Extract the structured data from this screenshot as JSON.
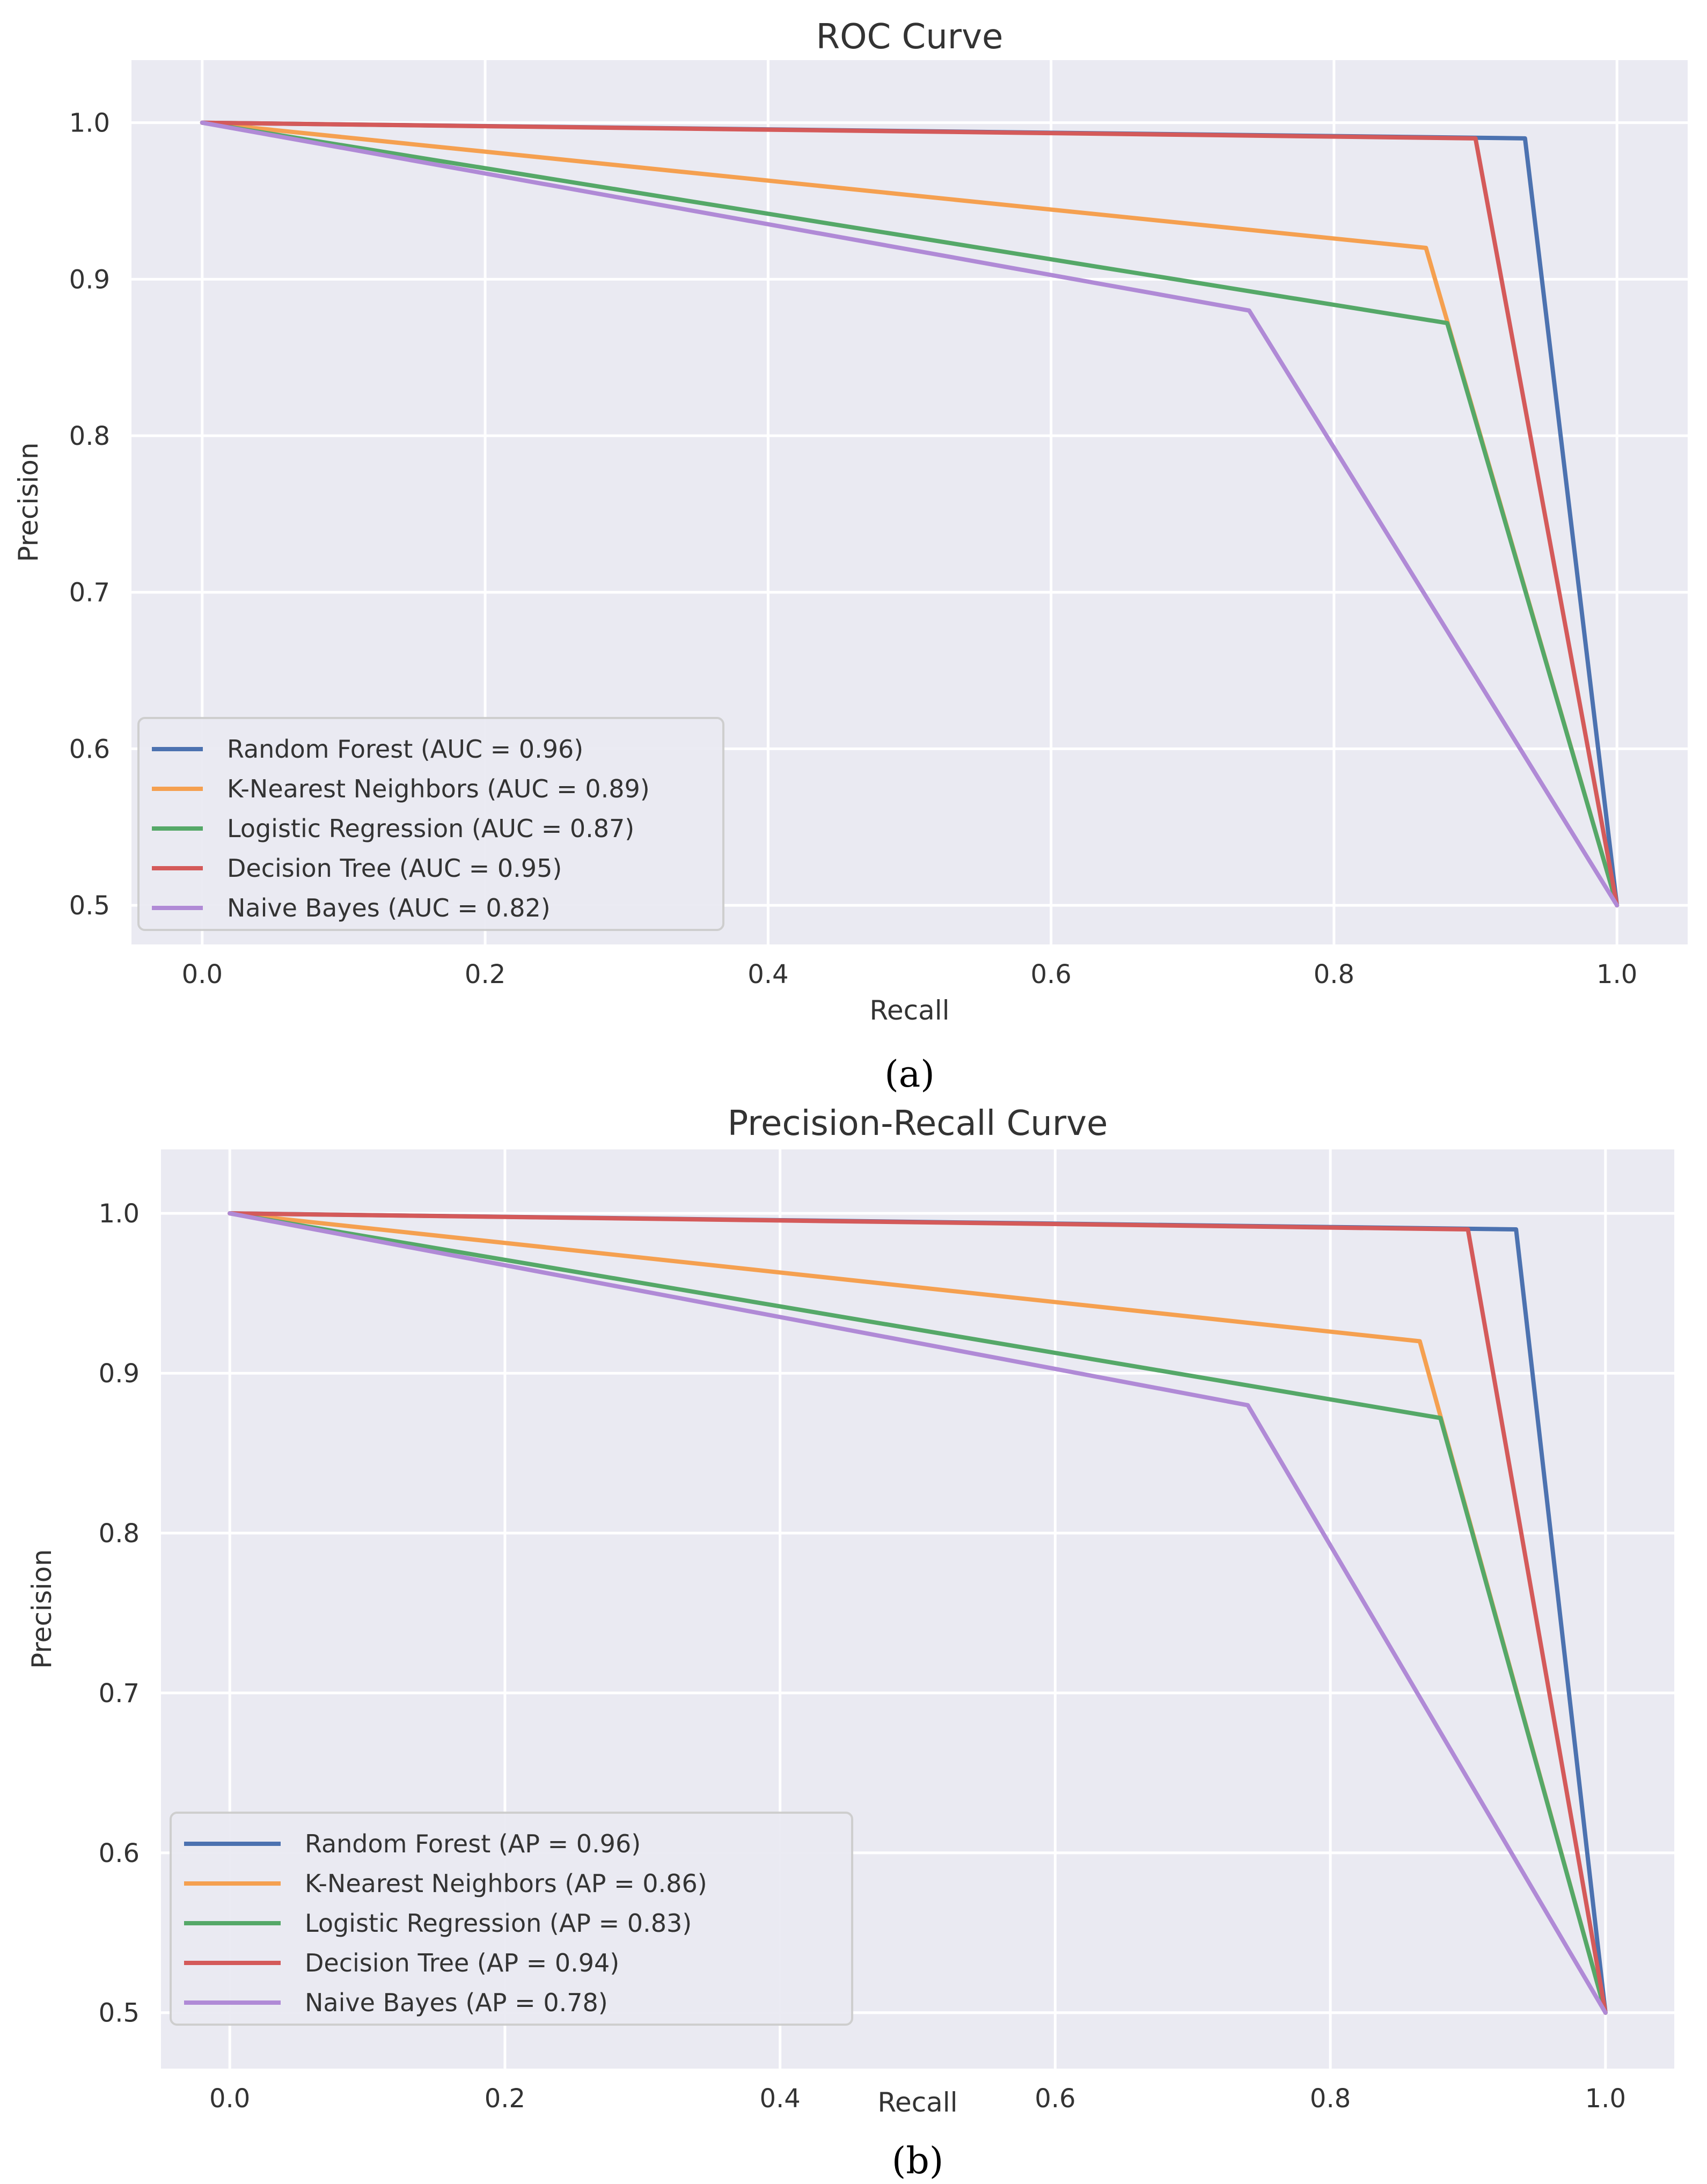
{
  "chart_data": [
    {
      "type": "line",
      "panel_label": "(a)",
      "title": "ROC Curve",
      "xlabel": "Recall",
      "ylabel": "Precision",
      "xlim": [
        -0.05,
        1.05
      ],
      "ylim": [
        0.475,
        1.04
      ],
      "xticks": [
        "0.0",
        "0.2",
        "0.4",
        "0.6",
        "0.8",
        "1.0"
      ],
      "xtick_values": [
        0.0,
        0.2,
        0.4,
        0.6,
        0.8,
        1.0
      ],
      "yticks": [
        "0.5",
        "0.6",
        "0.7",
        "0.8",
        "0.9",
        "1.0"
      ],
      "ytick_values": [
        0.5,
        0.6,
        0.7,
        0.8,
        0.9,
        1.0
      ],
      "grid": true,
      "legend_position": "lower-left",
      "series": [
        {
          "name": "Random Forest (AUC = 0.96)",
          "color": "#4c72b0",
          "x": [
            0.0,
            0.935,
            1.0
          ],
          "y": [
            1.0,
            0.99,
            0.5
          ]
        },
        {
          "name": "K-Nearest Neighbors (AUC = 0.89)",
          "color": "#f5a050",
          "x": [
            0.0,
            0.865,
            1.0
          ],
          "y": [
            1.0,
            0.92,
            0.5
          ]
        },
        {
          "name": "Logistic Regression (AUC = 0.87)",
          "color": "#55a868",
          "x": [
            0.0,
            0.88,
            1.0
          ],
          "y": [
            1.0,
            0.872,
            0.5
          ]
        },
        {
          "name": "Decision Tree (AUC = 0.95)",
          "color": "#d45a5a",
          "x": [
            0.0,
            0.9,
            1.0
          ],
          "y": [
            1.0,
            0.99,
            0.5
          ]
        },
        {
          "name": "Naive Bayes (AUC = 0.82)",
          "color": "#b08ad6",
          "x": [
            0.0,
            0.74,
            1.0
          ],
          "y": [
            1.0,
            0.88,
            0.5
          ]
        }
      ]
    },
    {
      "type": "line",
      "panel_label": "(b)",
      "title": "Precision-Recall Curve",
      "xlabel": "Recall",
      "ylabel": "Precision",
      "xlim": [
        -0.05,
        1.05
      ],
      "ylim": [
        0.465,
        1.04
      ],
      "xticks": [
        "0.0",
        "0.2",
        "0.4",
        "0.6",
        "0.8",
        "1.0"
      ],
      "xtick_values": [
        0.0,
        0.2,
        0.4,
        0.6,
        0.8,
        1.0
      ],
      "yticks": [
        "0.5",
        "0.6",
        "0.7",
        "0.8",
        "0.9",
        "1.0"
      ],
      "ytick_values": [
        0.5,
        0.6,
        0.7,
        0.8,
        0.9,
        1.0
      ],
      "grid": true,
      "legend_position": "lower-left",
      "series": [
        {
          "name": "Random Forest (AP = 0.96)",
          "color": "#4c72b0",
          "x": [
            0.0,
            0.935,
            1.0
          ],
          "y": [
            1.0,
            0.99,
            0.5
          ]
        },
        {
          "name": "K-Nearest Neighbors (AP = 0.86)",
          "color": "#f5a050",
          "x": [
            0.0,
            0.865,
            1.0
          ],
          "y": [
            1.0,
            0.92,
            0.5
          ]
        },
        {
          "name": "Logistic Regression (AP = 0.83)",
          "color": "#55a868",
          "x": [
            0.0,
            0.88,
            1.0
          ],
          "y": [
            1.0,
            0.872,
            0.5
          ]
        },
        {
          "name": "Decision Tree (AP = 0.94)",
          "color": "#d45a5a",
          "x": [
            0.0,
            0.9,
            1.0
          ],
          "y": [
            1.0,
            0.99,
            0.5
          ]
        },
        {
          "name": "Naive Bayes (AP = 0.78)",
          "color": "#b08ad6",
          "x": [
            0.0,
            0.74,
            1.0
          ],
          "y": [
            1.0,
            0.88,
            0.5
          ]
        }
      ]
    }
  ]
}
